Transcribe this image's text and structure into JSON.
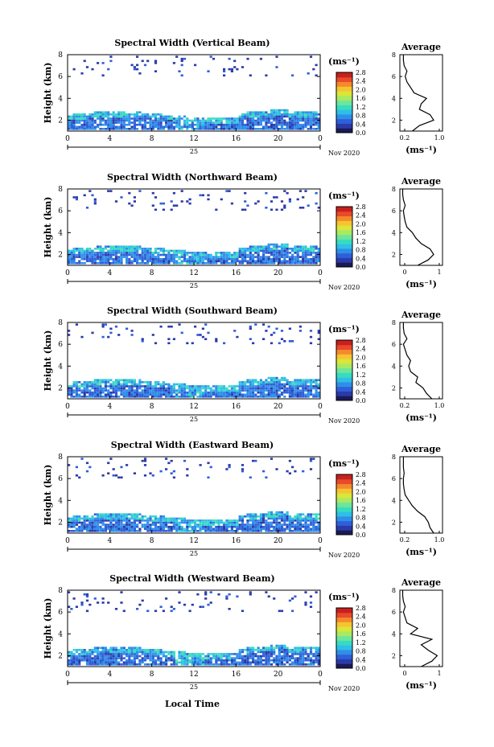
{
  "colors": {
    "colormap": [
      "#1a1a55",
      "#2b3aa8",
      "#2f5fd8",
      "#2f8fe8",
      "#2fbfe6",
      "#37dcc0",
      "#6ee59a",
      "#a8ea62",
      "#dbe63a",
      "#f6c431",
      "#f48a2c",
      "#e84a2a",
      "#c8201e"
    ],
    "profile_line": "#000000"
  },
  "shared": {
    "ylabel": "Height (km)",
    "cbar_unit": "(ms⁻¹)",
    "cbar_ticks": [
      "0.0",
      "0.4",
      "0.8",
      "1.2",
      "1.6",
      "2.0",
      "2.4",
      "2.8"
    ],
    "date_label": "Nov 2020",
    "day_label": "25",
    "xtick_labels": [
      "0",
      "4",
      "8",
      "12",
      "16",
      "20",
      "0"
    ],
    "ytick_labels": [
      "2",
      "4",
      "6",
      "8"
    ],
    "profile_title": "Average",
    "profile_ytick_labels": [
      "2",
      "4",
      "6",
      "8"
    ],
    "profile_xlabel": "(ms⁻¹)",
    "xlabel": "Local Time"
  },
  "chart_data": [
    {
      "type": "heatmap",
      "title": "Spectral Width (Vertical Beam)",
      "xlabel": "Local Time",
      "ylabel": "Height (km)",
      "xlim": [
        0,
        24
      ],
      "ylim": [
        1,
        8
      ],
      "clim": [
        0.0,
        2.8
      ],
      "profile": {
        "title": "Average",
        "xticks": [
          "0.2",
          "1.0"
        ],
        "xlim": [
          0.0,
          1.2
        ],
        "heights": [
          1.0,
          1.5,
          2.0,
          2.5,
          3.0,
          3.5,
          4.0,
          4.5,
          5.0,
          5.5,
          6.0,
          6.5,
          7.0,
          7.5,
          8.0
        ],
        "values": [
          0.35,
          0.55,
          0.95,
          0.85,
          0.55,
          0.6,
          0.75,
          0.4,
          0.3,
          0.2,
          0.15,
          0.2,
          0.12,
          0.1,
          0.1
        ]
      }
    },
    {
      "type": "heatmap",
      "title": "Spectral Width (Northward Beam)",
      "xlabel": "Local Time",
      "ylabel": "Height (km)",
      "xlim": [
        0,
        24
      ],
      "ylim": [
        1,
        8
      ],
      "clim": [
        0.0,
        2.8
      ],
      "profile": {
        "title": "Average",
        "xticks": [
          "0",
          "1"
        ],
        "xlim": [
          0.0,
          1.2
        ],
        "heights": [
          1.0,
          1.5,
          2.0,
          2.5,
          3.0,
          3.5,
          4.0,
          4.5,
          5.0,
          5.5,
          6.0,
          6.5,
          7.0,
          7.5,
          8.0
        ],
        "values": [
          0.5,
          0.8,
          0.95,
          0.85,
          0.6,
          0.45,
          0.35,
          0.2,
          0.15,
          0.12,
          0.1,
          0.15,
          0.1,
          0.08,
          0.08
        ]
      }
    },
    {
      "type": "heatmap",
      "title": "Spectral Width (Southward Beam)",
      "xlabel": "Local Time",
      "ylabel": "Height (km)",
      "xlim": [
        0,
        24
      ],
      "ylim": [
        1,
        8
      ],
      "clim": [
        0.0,
        2.8
      ],
      "profile": {
        "title": "Average",
        "xticks": [
          "0.2",
          "1.0"
        ],
        "xlim": [
          0.0,
          1.2
        ],
        "heights": [
          1.0,
          1.5,
          2.0,
          2.5,
          3.0,
          3.5,
          4.0,
          4.5,
          5.0,
          5.5,
          6.0,
          6.5,
          7.0,
          7.5,
          8.0
        ],
        "values": [
          0.9,
          0.75,
          0.65,
          0.45,
          0.5,
          0.3,
          0.25,
          0.3,
          0.2,
          0.15,
          0.1,
          0.2,
          0.12,
          0.1,
          0.1
        ]
      }
    },
    {
      "type": "heatmap",
      "title": "Spectral Width (Eastward Beam)",
      "xlabel": "Local Time",
      "ylabel": "Height (km)",
      "xlim": [
        0,
        24
      ],
      "ylim": [
        1,
        8
      ],
      "clim": [
        0.0,
        2.8
      ],
      "profile": {
        "title": "Average",
        "xticks": [
          "0.2",
          "1.0"
        ],
        "xlim": [
          0.0,
          1.2
        ],
        "heights": [
          1.0,
          1.5,
          2.0,
          2.5,
          3.0,
          3.5,
          4.0,
          4.5,
          5.0,
          5.5,
          6.0,
          6.5,
          7.0,
          7.5,
          8.0
        ],
        "values": [
          0.95,
          0.85,
          0.8,
          0.7,
          0.5,
          0.35,
          0.25,
          0.15,
          0.12,
          0.1,
          0.1,
          0.12,
          0.1,
          0.1,
          0.1
        ]
      }
    },
    {
      "type": "heatmap",
      "title": "Spectral Width (Westward Beam)",
      "xlabel": "Local Time",
      "ylabel": "Height (km)",
      "xlim": [
        0,
        24
      ],
      "ylim": [
        1,
        8
      ],
      "clim": [
        0.0,
        2.8
      ],
      "profile": {
        "title": "Average",
        "xticks": [
          "0",
          "1"
        ],
        "xlim": [
          0.0,
          1.2
        ],
        "heights": [
          1.0,
          1.5,
          2.0,
          2.5,
          3.0,
          3.5,
          4.0,
          4.5,
          5.0,
          5.5,
          6.0,
          6.5,
          7.0,
          7.5,
          8.0
        ],
        "values": [
          0.6,
          0.9,
          1.05,
          0.8,
          0.6,
          0.9,
          0.3,
          0.5,
          0.2,
          0.15,
          0.1,
          0.15,
          0.1,
          0.08,
          0.08
        ]
      }
    }
  ]
}
